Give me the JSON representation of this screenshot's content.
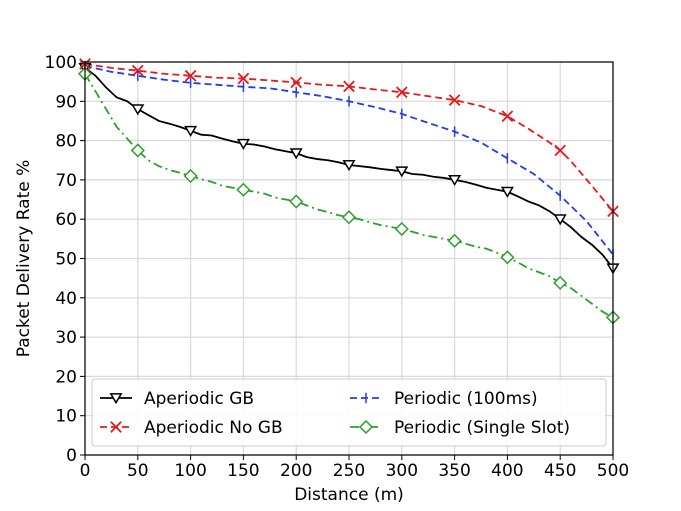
{
  "chart_data": {
    "type": "line",
    "title": "",
    "xlabel": "Distance (m)",
    "ylabel": "Packet Delivery Rate %",
    "xlim": [
      0,
      500
    ],
    "ylim": [
      0,
      100
    ],
    "xticks": [
      "0",
      "50",
      "100",
      "150",
      "200",
      "250",
      "300",
      "350",
      "400",
      "450",
      "500"
    ],
    "yticks": [
      "0",
      "10",
      "20",
      "30",
      "40",
      "50",
      "60",
      "70",
      "80",
      "90",
      "100"
    ],
    "grid": true,
    "legend_position": "bottom-center",
    "series": [
      {
        "name": "Aperiodic GB",
        "color": "#000000",
        "line_style": "solid",
        "marker": "triangle-down",
        "x": [
          0,
          10,
          20,
          30,
          40,
          50,
          60,
          70,
          80,
          90,
          100,
          110,
          120,
          130,
          140,
          150,
          160,
          170,
          180,
          190,
          200,
          210,
          220,
          230,
          240,
          250,
          260,
          270,
          280,
          290,
          300,
          310,
          320,
          330,
          340,
          350,
          360,
          370,
          380,
          390,
          400,
          410,
          420,
          430,
          440,
          450,
          460,
          470,
          480,
          490,
          500
        ],
        "values": [
          98.5,
          96.5,
          93.5,
          91,
          90,
          88,
          86.5,
          85,
          84.3,
          83.5,
          82.5,
          81.5,
          81.3,
          80.5,
          79.8,
          79.2,
          79,
          78.5,
          77.8,
          77.3,
          76.8,
          75.8,
          75.3,
          75,
          74.5,
          73.8,
          73.5,
          73.2,
          72.8,
          72.5,
          72.2,
          71.5,
          71.3,
          70.8,
          70.5,
          70,
          69.5,
          68.8,
          68,
          67.5,
          67,
          65.8,
          64.5,
          63.5,
          62,
          60,
          58,
          55.5,
          53.5,
          51,
          47.5
        ],
        "marker_every": 5
      },
      {
        "name": "Aperiodic No GB",
        "color": "#e41a1c",
        "line_style": "dashed",
        "marker": "x",
        "x": [
          0,
          25,
          50,
          75,
          100,
          125,
          150,
          175,
          200,
          225,
          250,
          275,
          300,
          325,
          350,
          375,
          400,
          420,
          440,
          450,
          460,
          480,
          500
        ],
        "values": [
          99.5,
          98.5,
          97.8,
          97,
          96.5,
          96,
          95.8,
          95.3,
          94.8,
          94.2,
          93.8,
          93,
          92.3,
          91.3,
          90.3,
          88.8,
          86.2,
          83,
          79.5,
          77.5,
          74.8,
          68.5,
          62
        ],
        "marker_x": [
          0,
          50,
          100,
          150,
          200,
          250,
          300,
          350,
          400,
          450,
          500
        ],
        "marker_values": [
          99.5,
          97.8,
          96.5,
          95.8,
          94.8,
          93.8,
          92.3,
          90.3,
          86.2,
          77.5,
          62
        ]
      },
      {
        "name": "Periodic (100ms)",
        "color": "#1f3ee8",
        "line_style": "dashed",
        "marker": "vline",
        "x": [
          0,
          25,
          50,
          75,
          100,
          125,
          150,
          175,
          200,
          225,
          250,
          275,
          300,
          325,
          350,
          375,
          400,
          425,
          450,
          475,
          500
        ],
        "values": [
          99,
          97.5,
          96.5,
          95.5,
          94.7,
          94.2,
          93.7,
          93.3,
          92.3,
          91.3,
          90,
          88.5,
          86.8,
          84.5,
          82.3,
          79.5,
          75.5,
          71.5,
          66,
          59.5,
          51
        ],
        "marker_x": [
          0,
          50,
          100,
          150,
          200,
          250,
          300,
          350,
          400,
          450,
          500
        ],
        "marker_values": [
          99,
          96.5,
          94.7,
          93.7,
          92.3,
          90,
          86.8,
          82.3,
          75.5,
          66,
          51
        ]
      },
      {
        "name": "Periodic (Single Slot)",
        "color": "#2ca02c",
        "line_style": "dashdot",
        "marker": "diamond",
        "x": [
          0,
          10,
          20,
          30,
          40,
          50,
          60,
          70,
          80,
          90,
          100,
          110,
          120,
          130,
          140,
          150,
          160,
          170,
          180,
          190,
          200,
          210,
          220,
          230,
          240,
          250,
          260,
          270,
          280,
          290,
          300,
          310,
          320,
          330,
          340,
          350,
          360,
          370,
          380,
          390,
          400,
          410,
          420,
          430,
          440,
          450,
          460,
          470,
          480,
          490,
          500
        ],
        "values": [
          97,
          92.5,
          88,
          83.5,
          80.5,
          77.5,
          75,
          73.5,
          72.5,
          71.8,
          71,
          70.2,
          69.5,
          68.5,
          68,
          67.5,
          67,
          66.5,
          65.5,
          65,
          64.5,
          63.5,
          62.5,
          61.8,
          61,
          60.5,
          60,
          59.2,
          58.5,
          58,
          57.5,
          56.8,
          56,
          55.5,
          55,
          54.5,
          53.8,
          53,
          52.5,
          51.5,
          50.3,
          49,
          47.5,
          46.5,
          45.5,
          43.8,
          42.5,
          40.5,
          38.5,
          36.5,
          35
        ],
        "marker_every": 5
      }
    ]
  }
}
